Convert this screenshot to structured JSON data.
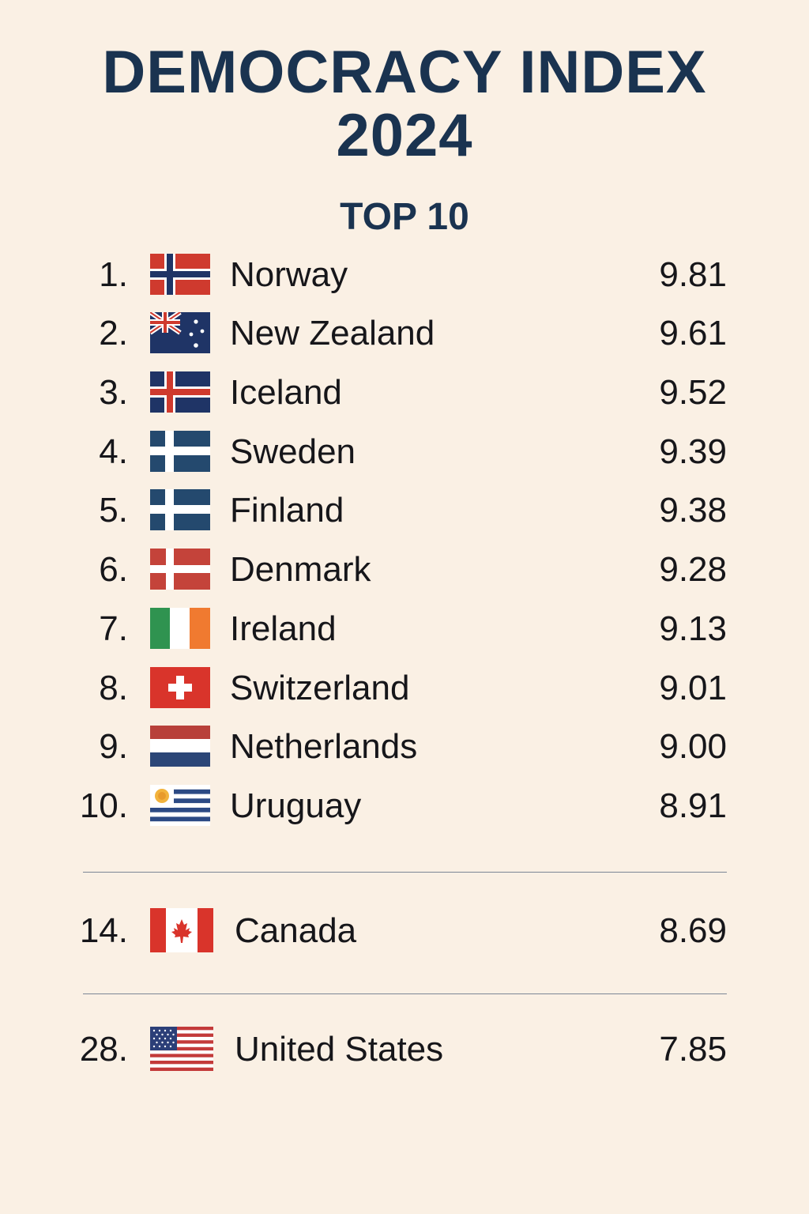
{
  "title_line1": "DEMOCRACY INDEX",
  "title_line2": "2024",
  "subtitle": "TOP 10",
  "top10": [
    {
      "rank": "1.",
      "flag": "norway-flag-icon",
      "country": "Norway",
      "score": "9.81"
    },
    {
      "rank": "2.",
      "flag": "new-zealand-flag-icon",
      "country": "New Zealand",
      "score": "9.61"
    },
    {
      "rank": "3.",
      "flag": "iceland-flag-icon",
      "country": "Iceland",
      "score": "9.52"
    },
    {
      "rank": "4.",
      "flag": "sweden-flag-icon",
      "country": "Sweden",
      "score": "9.39"
    },
    {
      "rank": "5.",
      "flag": "finland-flag-icon",
      "country": "Finland",
      "score": "9.38"
    },
    {
      "rank": "6.",
      "flag": "denmark-flag-icon",
      "country": "Denmark",
      "score": "9.28"
    },
    {
      "rank": "7.",
      "flag": "ireland-flag-icon",
      "country": "Ireland",
      "score": "9.13"
    },
    {
      "rank": "8.",
      "flag": "switzerland-flag-icon",
      "country": "Switzerland",
      "score": "9.01"
    },
    {
      "rank": "9.",
      "flag": "netherlands-flag-icon",
      "country": "Netherlands",
      "score": "9.00"
    },
    {
      "rank": "10.",
      "flag": "uruguay-flag-icon",
      "country": "Uruguay",
      "score": "8.91"
    }
  ],
  "extra": [
    {
      "rank": "14.",
      "flag": "canada-flag-icon",
      "country": "Canada",
      "score": "8.69"
    },
    {
      "rank": "28.",
      "flag": "united-states-flag-icon",
      "country": "United States",
      "score": "7.85"
    }
  ],
  "colors": {
    "background": "#faf0e4",
    "title": "#1a3350",
    "text": "#16161a",
    "divider": "#7b8696"
  }
}
